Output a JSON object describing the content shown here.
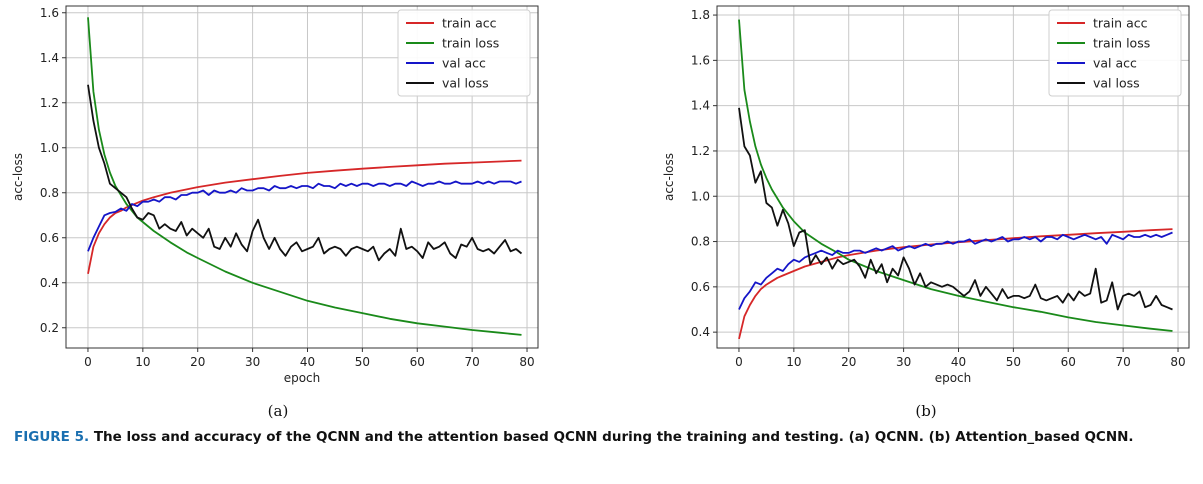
{
  "figure": {
    "caption_tag": "FIGURE 5.",
    "caption_text": "The loss and accuracy of the QCNN and the attention based QCNN during the training and testing. (a) QCNN. (b) Attention_based QCNN.",
    "colors": {
      "train_acc": "#d62728",
      "train_loss": "#1a8a1a",
      "val_acc": "#1515c8",
      "val_loss": "#111111"
    }
  },
  "chart_data": [
    {
      "type": "line",
      "panel_label": "(a)",
      "xlabel": "epoch",
      "ylabel": "acc-loss",
      "xlim": [
        -4,
        82
      ],
      "ylim": [
        0.11,
        1.63
      ],
      "xticks": [
        0,
        10,
        20,
        30,
        40,
        50,
        60,
        70,
        80
      ],
      "yticks": [
        0.2,
        0.4,
        0.6,
        0.8,
        1.0,
        1.2,
        1.4,
        1.6
      ],
      "grid": true,
      "legend_position": "top-right",
      "series": [
        {
          "name": "train acc",
          "color": "#d62728",
          "x": [
            0,
            1,
            2,
            3,
            4,
            5,
            6,
            7,
            8,
            10,
            12,
            15,
            18,
            20,
            25,
            30,
            35,
            40,
            45,
            50,
            55,
            60,
            65,
            70,
            75,
            79
          ],
          "values": [
            0.44,
            0.56,
            0.62,
            0.66,
            0.69,
            0.71,
            0.72,
            0.735,
            0.745,
            0.765,
            0.78,
            0.8,
            0.815,
            0.825,
            0.845,
            0.86,
            0.875,
            0.888,
            0.898,
            0.907,
            0.915,
            0.922,
            0.929,
            0.934,
            0.939,
            0.943
          ]
        },
        {
          "name": "train loss",
          "color": "#1a8a1a",
          "x": [
            0,
            1,
            2,
            3,
            4,
            5,
            6,
            7,
            8,
            9,
            10,
            12,
            15,
            18,
            20,
            25,
            30,
            35,
            40,
            45,
            50,
            55,
            60,
            65,
            70,
            75,
            79
          ],
          "values": [
            1.58,
            1.25,
            1.08,
            0.97,
            0.89,
            0.83,
            0.79,
            0.75,
            0.72,
            0.69,
            0.67,
            0.63,
            0.58,
            0.535,
            0.51,
            0.45,
            0.4,
            0.36,
            0.32,
            0.29,
            0.265,
            0.24,
            0.22,
            0.205,
            0.19,
            0.178,
            0.168
          ]
        },
        {
          "name": "val acc",
          "color": "#1515c8",
          "x": [
            0,
            1,
            2,
            3,
            4,
            5,
            6,
            7,
            8,
            9,
            10,
            11,
            12,
            13,
            14,
            15,
            16,
            17,
            18,
            19,
            20,
            21,
            22,
            23,
            24,
            25,
            26,
            27,
            28,
            29,
            30,
            31,
            32,
            33,
            34,
            35,
            36,
            37,
            38,
            39,
            40,
            41,
            42,
            43,
            44,
            45,
            46,
            47,
            48,
            49,
            50,
            51,
            52,
            53,
            54,
            55,
            56,
            57,
            58,
            59,
            60,
            61,
            62,
            63,
            64,
            65,
            66,
            67,
            68,
            69,
            70,
            71,
            72,
            73,
            74,
            75,
            76,
            77,
            78,
            79
          ],
          "values": [
            0.54,
            0.6,
            0.65,
            0.7,
            0.71,
            0.715,
            0.73,
            0.72,
            0.75,
            0.74,
            0.76,
            0.76,
            0.77,
            0.76,
            0.78,
            0.78,
            0.77,
            0.79,
            0.79,
            0.8,
            0.8,
            0.81,
            0.79,
            0.81,
            0.8,
            0.8,
            0.81,
            0.8,
            0.82,
            0.81,
            0.81,
            0.82,
            0.82,
            0.81,
            0.83,
            0.82,
            0.82,
            0.83,
            0.82,
            0.83,
            0.83,
            0.82,
            0.84,
            0.83,
            0.83,
            0.82,
            0.84,
            0.83,
            0.84,
            0.83,
            0.84,
            0.84,
            0.83,
            0.84,
            0.84,
            0.83,
            0.84,
            0.84,
            0.83,
            0.85,
            0.84,
            0.83,
            0.84,
            0.84,
            0.85,
            0.84,
            0.84,
            0.85,
            0.84,
            0.84,
            0.84,
            0.85,
            0.84,
            0.85,
            0.84,
            0.85,
            0.85,
            0.85,
            0.84,
            0.85
          ]
        },
        {
          "name": "val loss",
          "color": "#111111",
          "x": [
            0,
            1,
            2,
            3,
            4,
            5,
            6,
            7,
            8,
            9,
            10,
            11,
            12,
            13,
            14,
            15,
            16,
            17,
            18,
            19,
            20,
            21,
            22,
            23,
            24,
            25,
            26,
            27,
            28,
            29,
            30,
            31,
            32,
            33,
            34,
            35,
            36,
            37,
            38,
            39,
            40,
            41,
            42,
            43,
            44,
            45,
            46,
            47,
            48,
            49,
            50,
            51,
            52,
            53,
            54,
            55,
            56,
            57,
            58,
            59,
            60,
            61,
            62,
            63,
            64,
            65,
            66,
            67,
            68,
            69,
            70,
            71,
            72,
            73,
            74,
            75,
            76,
            77,
            78,
            79
          ],
          "values": [
            1.28,
            1.12,
            1.0,
            0.93,
            0.84,
            0.82,
            0.8,
            0.78,
            0.73,
            0.69,
            0.68,
            0.71,
            0.7,
            0.64,
            0.66,
            0.64,
            0.63,
            0.67,
            0.61,
            0.64,
            0.62,
            0.6,
            0.64,
            0.56,
            0.55,
            0.6,
            0.56,
            0.62,
            0.57,
            0.54,
            0.63,
            0.68,
            0.6,
            0.55,
            0.6,
            0.55,
            0.52,
            0.56,
            0.58,
            0.54,
            0.55,
            0.56,
            0.6,
            0.53,
            0.55,
            0.56,
            0.55,
            0.52,
            0.55,
            0.56,
            0.55,
            0.54,
            0.56,
            0.5,
            0.53,
            0.55,
            0.52,
            0.64,
            0.55,
            0.56,
            0.54,
            0.51,
            0.58,
            0.55,
            0.56,
            0.58,
            0.53,
            0.51,
            0.57,
            0.56,
            0.6,
            0.55,
            0.54,
            0.55,
            0.53,
            0.56,
            0.59,
            0.54,
            0.55,
            0.53
          ]
        }
      ]
    },
    {
      "type": "line",
      "panel_label": "(b)",
      "xlabel": "epoch",
      "ylabel": "acc-loss",
      "xlim": [
        -4,
        82
      ],
      "ylim": [
        0.33,
        1.84
      ],
      "xticks": [
        0,
        10,
        20,
        30,
        40,
        50,
        60,
        70,
        80
      ],
      "yticks": [
        0.4,
        0.6,
        0.8,
        1.0,
        1.2,
        1.4,
        1.6,
        1.8
      ],
      "grid": true,
      "legend_position": "top-right",
      "series": [
        {
          "name": "train acc",
          "color": "#d62728",
          "x": [
            0,
            1,
            2,
            3,
            4,
            5,
            6,
            7,
            8,
            10,
            12,
            15,
            18,
            20,
            25,
            30,
            35,
            40,
            45,
            50,
            55,
            60,
            65,
            70,
            75,
            79
          ],
          "values": [
            0.37,
            0.47,
            0.52,
            0.56,
            0.59,
            0.61,
            0.625,
            0.64,
            0.65,
            0.67,
            0.69,
            0.71,
            0.73,
            0.74,
            0.76,
            0.775,
            0.787,
            0.797,
            0.806,
            0.815,
            0.823,
            0.83,
            0.837,
            0.843,
            0.85,
            0.855
          ]
        },
        {
          "name": "train loss",
          "color": "#1a8a1a",
          "x": [
            0,
            1,
            2,
            3,
            4,
            5,
            6,
            7,
            8,
            10,
            12,
            15,
            18,
            20,
            25,
            30,
            35,
            40,
            45,
            50,
            55,
            60,
            65,
            70,
            75,
            79
          ],
          "values": [
            1.78,
            1.47,
            1.33,
            1.22,
            1.14,
            1.08,
            1.03,
            0.99,
            0.95,
            0.89,
            0.84,
            0.79,
            0.75,
            0.72,
            0.67,
            0.63,
            0.59,
            0.56,
            0.535,
            0.51,
            0.49,
            0.465,
            0.445,
            0.43,
            0.415,
            0.405
          ]
        },
        {
          "name": "val acc",
          "color": "#1515c8",
          "x": [
            0,
            1,
            2,
            3,
            4,
            5,
            6,
            7,
            8,
            9,
            10,
            11,
            12,
            13,
            14,
            15,
            16,
            17,
            18,
            19,
            20,
            21,
            22,
            23,
            24,
            25,
            26,
            27,
            28,
            29,
            30,
            31,
            32,
            33,
            34,
            35,
            36,
            37,
            38,
            39,
            40,
            41,
            42,
            43,
            44,
            45,
            46,
            47,
            48,
            49,
            50,
            51,
            52,
            53,
            54,
            55,
            56,
            57,
            58,
            59,
            60,
            61,
            62,
            63,
            64,
            65,
            66,
            67,
            68,
            69,
            70,
            71,
            72,
            73,
            74,
            75,
            76,
            77,
            78,
            79
          ],
          "values": [
            0.5,
            0.55,
            0.58,
            0.62,
            0.61,
            0.64,
            0.66,
            0.68,
            0.67,
            0.7,
            0.72,
            0.71,
            0.73,
            0.74,
            0.75,
            0.76,
            0.75,
            0.74,
            0.76,
            0.75,
            0.75,
            0.76,
            0.76,
            0.75,
            0.76,
            0.77,
            0.76,
            0.77,
            0.78,
            0.76,
            0.77,
            0.78,
            0.77,
            0.78,
            0.79,
            0.78,
            0.79,
            0.79,
            0.8,
            0.79,
            0.8,
            0.8,
            0.81,
            0.79,
            0.8,
            0.81,
            0.8,
            0.81,
            0.82,
            0.8,
            0.81,
            0.81,
            0.82,
            0.81,
            0.82,
            0.8,
            0.82,
            0.82,
            0.81,
            0.83,
            0.82,
            0.81,
            0.82,
            0.83,
            0.82,
            0.81,
            0.82,
            0.79,
            0.83,
            0.82,
            0.81,
            0.83,
            0.82,
            0.82,
            0.83,
            0.82,
            0.83,
            0.82,
            0.83,
            0.84
          ]
        },
        {
          "name": "val loss",
          "color": "#111111",
          "x": [
            0,
            1,
            2,
            3,
            4,
            5,
            6,
            7,
            8,
            9,
            10,
            11,
            12,
            13,
            14,
            15,
            16,
            17,
            18,
            19,
            20,
            21,
            22,
            23,
            24,
            25,
            26,
            27,
            28,
            29,
            30,
            31,
            32,
            33,
            34,
            35,
            36,
            37,
            38,
            39,
            40,
            41,
            42,
            43,
            44,
            45,
            46,
            47,
            48,
            49,
            50,
            51,
            52,
            53,
            54,
            55,
            56,
            57,
            58,
            59,
            60,
            61,
            62,
            63,
            64,
            65,
            66,
            67,
            68,
            69,
            70,
            71,
            72,
            73,
            74,
            75,
            76,
            77,
            78,
            79
          ],
          "values": [
            1.39,
            1.22,
            1.18,
            1.06,
            1.11,
            0.97,
            0.95,
            0.87,
            0.94,
            0.88,
            0.78,
            0.84,
            0.85,
            0.7,
            0.74,
            0.7,
            0.73,
            0.68,
            0.72,
            0.7,
            0.71,
            0.72,
            0.69,
            0.64,
            0.72,
            0.66,
            0.7,
            0.62,
            0.68,
            0.65,
            0.73,
            0.68,
            0.61,
            0.66,
            0.6,
            0.62,
            0.61,
            0.6,
            0.61,
            0.6,
            0.58,
            0.56,
            0.58,
            0.63,
            0.56,
            0.6,
            0.57,
            0.54,
            0.59,
            0.55,
            0.56,
            0.56,
            0.55,
            0.56,
            0.61,
            0.55,
            0.54,
            0.55,
            0.56,
            0.53,
            0.57,
            0.54,
            0.58,
            0.56,
            0.57,
            0.68,
            0.53,
            0.54,
            0.62,
            0.5,
            0.56,
            0.57,
            0.56,
            0.58,
            0.51,
            0.52,
            0.56,
            0.52,
            0.51,
            0.5
          ]
        }
      ]
    }
  ]
}
